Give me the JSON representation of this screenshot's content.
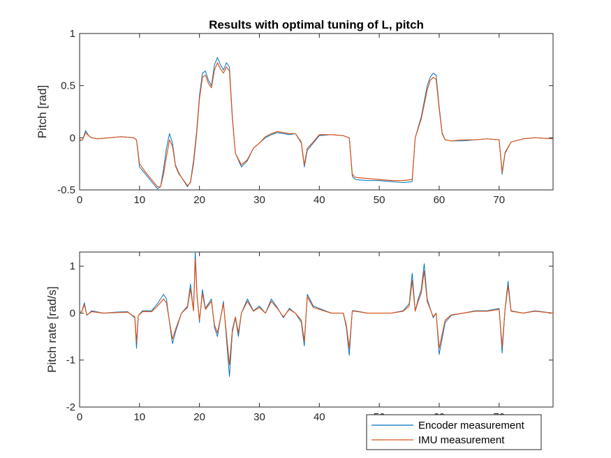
{
  "colors": {
    "encoder": "#0072BD",
    "imu": "#D95319",
    "axis": "#262626"
  },
  "legend": {
    "placement": "bottom-right",
    "entries": [
      "Encoder measurement",
      "IMU measurement"
    ]
  },
  "chart_data": [
    {
      "type": "line",
      "title": "Results with optimal tuning of L, pitch",
      "xlabel": "",
      "ylabel": "Pitch [rad]",
      "xlim": [
        0,
        79
      ],
      "ylim": [
        -0.5,
        1
      ],
      "xticks": [
        0,
        10,
        20,
        30,
        40,
        50,
        60,
        70
      ],
      "yticks": [
        -0.5,
        0,
        0.5,
        1
      ],
      "ytick_labels": [
        "-0.5",
        "0",
        "0.5",
        "1"
      ],
      "grid": false,
      "series": [
        {
          "name": "Encoder measurement",
          "x": [
            0,
            0.5,
            1,
            1.5,
            2,
            3,
            5,
            7,
            9,
            9.5,
            10,
            11,
            12,
            13,
            13.5,
            14,
            14.5,
            15,
            15.5,
            16,
            16.5,
            17,
            18,
            18.5,
            19,
            19.5,
            20,
            20.5,
            21,
            21.5,
            22,
            22.5,
            23,
            23.5,
            24,
            24.5,
            25,
            25.5,
            26,
            27,
            28,
            29,
            30,
            31,
            32,
            33,
            34,
            35,
            36,
            37,
            37.5,
            38,
            39,
            40,
            42,
            44,
            45,
            45.5,
            46,
            48,
            50,
            52,
            54,
            55.5,
            56,
            57,
            58,
            58.5,
            59,
            59.5,
            60,
            60.5,
            61,
            62,
            64,
            66,
            68,
            70,
            70.5,
            71,
            72,
            74,
            76,
            79
          ],
          "y": [
            -0.03,
            -0.02,
            0.07,
            0.02,
            0,
            -0.01,
            0,
            0.01,
            0,
            -0.02,
            -0.28,
            -0.35,
            -0.42,
            -0.49,
            -0.47,
            -0.3,
            -0.1,
            0.04,
            -0.05,
            -0.26,
            -0.33,
            -0.38,
            -0.47,
            -0.42,
            -0.22,
            0.05,
            0.4,
            0.62,
            0.64,
            0.55,
            0.5,
            0.7,
            0.77,
            0.7,
            0.65,
            0.72,
            0.68,
            0.2,
            -0.15,
            -0.28,
            -0.22,
            -0.1,
            -0.05,
            0,
            0.03,
            0.05,
            0.04,
            0.03,
            0.04,
            -0.05,
            -0.28,
            -0.12,
            -0.05,
            0.02,
            0.03,
            0.02,
            0,
            -0.37,
            -0.4,
            -0.41,
            -0.41,
            -0.42,
            -0.43,
            -0.42,
            0,
            0.2,
            0.5,
            0.58,
            0.62,
            0.6,
            0.3,
            0.05,
            -0.02,
            -0.03,
            -0.03,
            -0.02,
            -0.01,
            -0.02,
            -0.35,
            -0.15,
            -0.04,
            -0.01,
            0,
            -0.01
          ]
        },
        {
          "name": "IMU measurement",
          "x": [
            0,
            0.5,
            1,
            1.5,
            2,
            3,
            5,
            7,
            9,
            9.5,
            10,
            11,
            12,
            13,
            13.5,
            14,
            14.5,
            15,
            15.5,
            16,
            16.5,
            17,
            18,
            18.5,
            19,
            19.5,
            20,
            20.5,
            21,
            21.5,
            22,
            22.5,
            23,
            23.5,
            24,
            24.5,
            25,
            25.5,
            26,
            27,
            28,
            29,
            30,
            31,
            32,
            33,
            34,
            35,
            36,
            37,
            37.5,
            38,
            39,
            40,
            42,
            44,
            45,
            45.5,
            46,
            48,
            50,
            52,
            54,
            55.5,
            56,
            57,
            58,
            58.5,
            59,
            59.5,
            60,
            60.5,
            61,
            62,
            64,
            66,
            68,
            70,
            70.5,
            71,
            72,
            74,
            76,
            79
          ],
          "y": [
            -0.02,
            -0.02,
            0.05,
            0.02,
            0,
            -0.01,
            0,
            0.01,
            0,
            -0.02,
            -0.25,
            -0.33,
            -0.4,
            -0.47,
            -0.47,
            -0.35,
            -0.18,
            -0.02,
            -0.08,
            -0.27,
            -0.34,
            -0.38,
            -0.46,
            -0.43,
            -0.25,
            0.02,
            0.37,
            0.58,
            0.6,
            0.52,
            0.48,
            0.65,
            0.72,
            0.66,
            0.62,
            0.68,
            0.64,
            0.18,
            -0.15,
            -0.26,
            -0.21,
            -0.1,
            -0.05,
            0.01,
            0.04,
            0.06,
            0.05,
            0.04,
            0.04,
            -0.04,
            -0.26,
            -0.1,
            -0.04,
            0.03,
            0.03,
            0.02,
            0,
            -0.35,
            -0.38,
            -0.39,
            -0.4,
            -0.41,
            -0.41,
            -0.4,
            0,
            0.18,
            0.46,
            0.55,
            0.58,
            0.56,
            0.28,
            0.04,
            -0.02,
            -0.03,
            -0.02,
            -0.02,
            -0.01,
            -0.02,
            -0.33,
            -0.14,
            -0.04,
            -0.01,
            0,
            -0.01
          ]
        }
      ]
    },
    {
      "type": "line",
      "title": "",
      "xlabel": "",
      "ylabel": "Pitch rate [rad/s]",
      "xlim": [
        0,
        79
      ],
      "ylim": [
        -2,
        1.3
      ],
      "xticks": [
        0,
        10,
        20,
        30,
        40,
        50,
        60,
        70
      ],
      "yticks": [
        -2,
        -1,
        0,
        1
      ],
      "ytick_labels": [
        "-2",
        "-1",
        "0",
        "1"
      ],
      "grid": false,
      "series": [
        {
          "name": "Encoder measurement",
          "x": [
            0,
            0.4,
            0.8,
            1.2,
            2,
            4,
            6,
            8,
            9.2,
            9.5,
            9.8,
            10.5,
            12,
            13,
            14,
            14.5,
            15,
            15.5,
            16,
            17,
            18,
            18.5,
            19,
            19.3,
            19.6,
            20,
            20.5,
            21,
            22,
            22.5,
            23,
            24,
            24.5,
            25,
            25.5,
            26,
            26.5,
            27,
            28,
            29,
            30,
            31,
            32,
            33,
            34,
            35,
            36,
            37,
            37.5,
            38,
            39,
            40,
            42,
            44,
            44.5,
            45,
            45.5,
            46,
            48,
            50,
            52,
            54,
            55,
            55.5,
            56,
            56.5,
            57,
            57.5,
            58,
            59,
            59.5,
            60,
            61,
            62,
            64,
            66,
            68,
            70,
            70.5,
            71,
            71.5,
            72,
            74,
            76,
            79
          ],
          "y": [
            0,
            0.05,
            0.22,
            -0.05,
            0.05,
            0,
            0.02,
            0.03,
            -0.1,
            -0.75,
            -0.05,
            0.05,
            0.05,
            0.2,
            0.4,
            0.3,
            -0.2,
            -0.65,
            -0.4,
            0,
            0.15,
            0.62,
            0.05,
            1.3,
            0.4,
            -0.2,
            0.5,
            0.1,
            0.3,
            -0.3,
            -0.5,
            0.25,
            -0.55,
            -1.35,
            -0.4,
            -0.1,
            -0.5,
            0,
            0.3,
            0.05,
            0.15,
            0,
            0.3,
            0.12,
            -0.1,
            0.1,
            0,
            -0.2,
            -0.7,
            0.4,
            0.15,
            0.1,
            0,
            0,
            -0.3,
            -0.9,
            0.05,
            0.05,
            0,
            0,
            0,
            0.05,
            0.2,
            0.85,
            0.05,
            0.3,
            0.5,
            1.05,
            0.3,
            -0.1,
            0,
            -0.88,
            -0.2,
            -0.05,
            0,
            0.05,
            0.05,
            0.1,
            -0.85,
            0.1,
            0.68,
            0.05,
            0,
            0.05,
            0
          ]
        },
        {
          "name": "IMU measurement",
          "x": [
            0,
            0.4,
            0.8,
            1.2,
            2,
            4,
            6,
            8,
            9.2,
            9.5,
            9.8,
            10.5,
            12,
            13,
            14,
            14.5,
            15,
            15.5,
            16,
            17,
            18,
            18.5,
            19,
            19.3,
            19.6,
            20,
            20.5,
            21,
            22,
            22.5,
            23,
            24,
            24.5,
            25,
            25.5,
            26,
            26.5,
            27,
            28,
            29,
            30,
            31,
            32,
            33,
            34,
            35,
            36,
            37,
            37.5,
            38,
            39,
            40,
            42,
            44,
            44.5,
            45,
            45.5,
            46,
            48,
            50,
            52,
            54,
            55,
            55.5,
            56,
            56.5,
            57,
            57.5,
            58,
            59,
            59.5,
            60,
            61,
            62,
            64,
            66,
            68,
            70,
            70.5,
            71,
            71.5,
            72,
            74,
            76,
            79
          ],
          "y": [
            0,
            0.04,
            0.18,
            -0.04,
            0.03,
            0,
            0.01,
            0.02,
            -0.08,
            -0.62,
            -0.05,
            0.03,
            0.03,
            0.15,
            0.3,
            0.22,
            -0.18,
            -0.55,
            -0.35,
            0,
            0.12,
            0.52,
            0.05,
            1.15,
            0.35,
            -0.15,
            0.42,
            0.08,
            0.25,
            -0.25,
            -0.42,
            0.2,
            -0.45,
            -1.1,
            -0.35,
            -0.08,
            -0.42,
            0,
            0.25,
            0.04,
            0.12,
            0,
            0.25,
            0.1,
            -0.08,
            0.08,
            0,
            -0.15,
            -0.6,
            0.35,
            0.12,
            0.08,
            0,
            0,
            -0.25,
            -0.75,
            0.04,
            0.04,
            0,
            0,
            0,
            0.04,
            0.15,
            0.7,
            0.04,
            0.25,
            0.42,
            0.9,
            0.25,
            -0.08,
            0,
            -0.75,
            -0.15,
            -0.04,
            0,
            0.04,
            0.04,
            0.08,
            -0.72,
            0.08,
            0.58,
            0.04,
            0,
            0.04,
            0
          ]
        }
      ]
    }
  ]
}
